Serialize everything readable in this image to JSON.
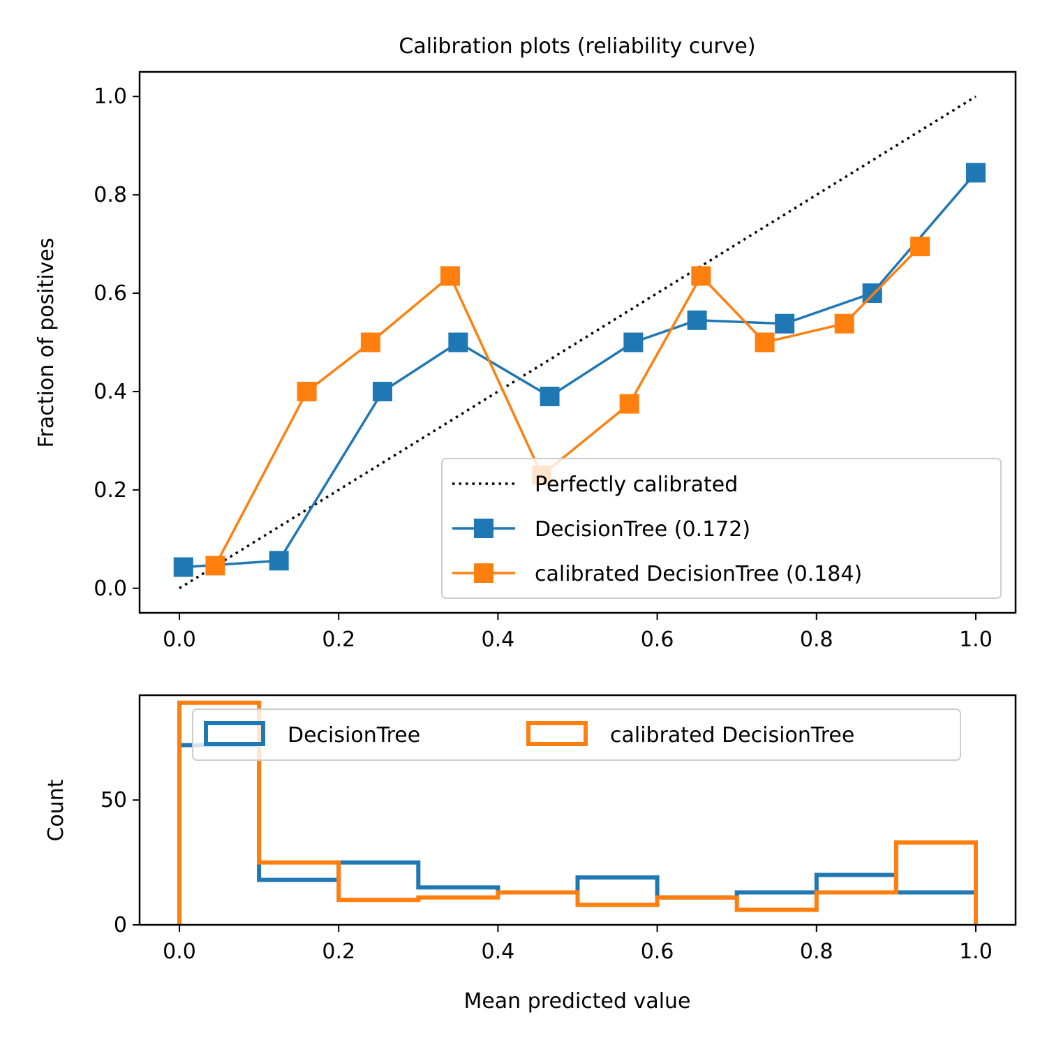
{
  "chart_data": [
    {
      "type": "line",
      "title": "Calibration plots  (reliability curve)",
      "xlabel": "",
      "ylabel": "Fraction of positives",
      "xlim": [
        -0.05,
        1.05
      ],
      "ylim": [
        -0.05,
        1.05
      ],
      "xticks": [
        0.0,
        0.2,
        0.4,
        0.6,
        0.8,
        1.0
      ],
      "xtick_labels": [
        "0.0",
        "0.2",
        "0.4",
        "0.6",
        "0.8",
        "1.0"
      ],
      "yticks": [
        0.0,
        0.2,
        0.4,
        0.6,
        0.8,
        1.0
      ],
      "ytick_labels": [
        "0.0",
        "0.2",
        "0.4",
        "0.6",
        "0.8",
        "1.0"
      ],
      "legend_position": "lower-right",
      "grid": false,
      "series": [
        {
          "name": "Perfectly calibrated",
          "style": "dotted",
          "color": "#000000",
          "x": [
            0,
            1
          ],
          "y": [
            0,
            1
          ]
        },
        {
          "name": "DecisionTree (0.172)",
          "style": "line-square",
          "color": "#1f77b4",
          "x": [
            0.005,
            0.125,
            0.255,
            0.35,
            0.465,
            0.57,
            0.65,
            0.76,
            0.87,
            1.0
          ],
          "y": [
            0.043,
            0.056,
            0.4,
            0.5,
            0.39,
            0.5,
            0.545,
            0.538,
            0.6,
            0.845
          ]
        },
        {
          "name": "calibrated DecisionTree (0.184)",
          "style": "line-square",
          "color": "#ff7f0e",
          "x": [
            0.045,
            0.16,
            0.24,
            0.34,
            0.455,
            0.565,
            0.655,
            0.735,
            0.835,
            0.93
          ],
          "y": [
            0.046,
            0.4,
            0.5,
            0.635,
            0.23,
            0.375,
            0.635,
            0.5,
            0.538,
            0.695
          ]
        }
      ]
    },
    {
      "type": "histogram",
      "title": "",
      "xlabel": "Mean predicted value",
      "ylabel": "Count",
      "xlim": [
        -0.05,
        1.05
      ],
      "ylim": [
        0,
        92
      ],
      "xticks": [
        0.0,
        0.2,
        0.4,
        0.6,
        0.8,
        1.0
      ],
      "xtick_labels": [
        "0.0",
        "0.2",
        "0.4",
        "0.6",
        "0.8",
        "1.0"
      ],
      "yticks": [
        0,
        50
      ],
      "ytick_labels": [
        "0",
        "50"
      ],
      "legend_position": "upper-center",
      "legend_columns": 2,
      "bin_edges": [
        0.0,
        0.1,
        0.2,
        0.3,
        0.4,
        0.5,
        0.6,
        0.7,
        0.8,
        0.9,
        1.0
      ],
      "series": [
        {
          "name": "DecisionTree",
          "color": "#1f77b4",
          "counts": [
            72,
            18,
            25,
            15,
            13,
            19,
            11,
            13,
            20,
            13
          ]
        },
        {
          "name": "calibrated DecisionTree",
          "color": "#ff7f0e",
          "counts": [
            89,
            25,
            10,
            11,
            13,
            8,
            11,
            6,
            13,
            33
          ]
        }
      ]
    }
  ]
}
